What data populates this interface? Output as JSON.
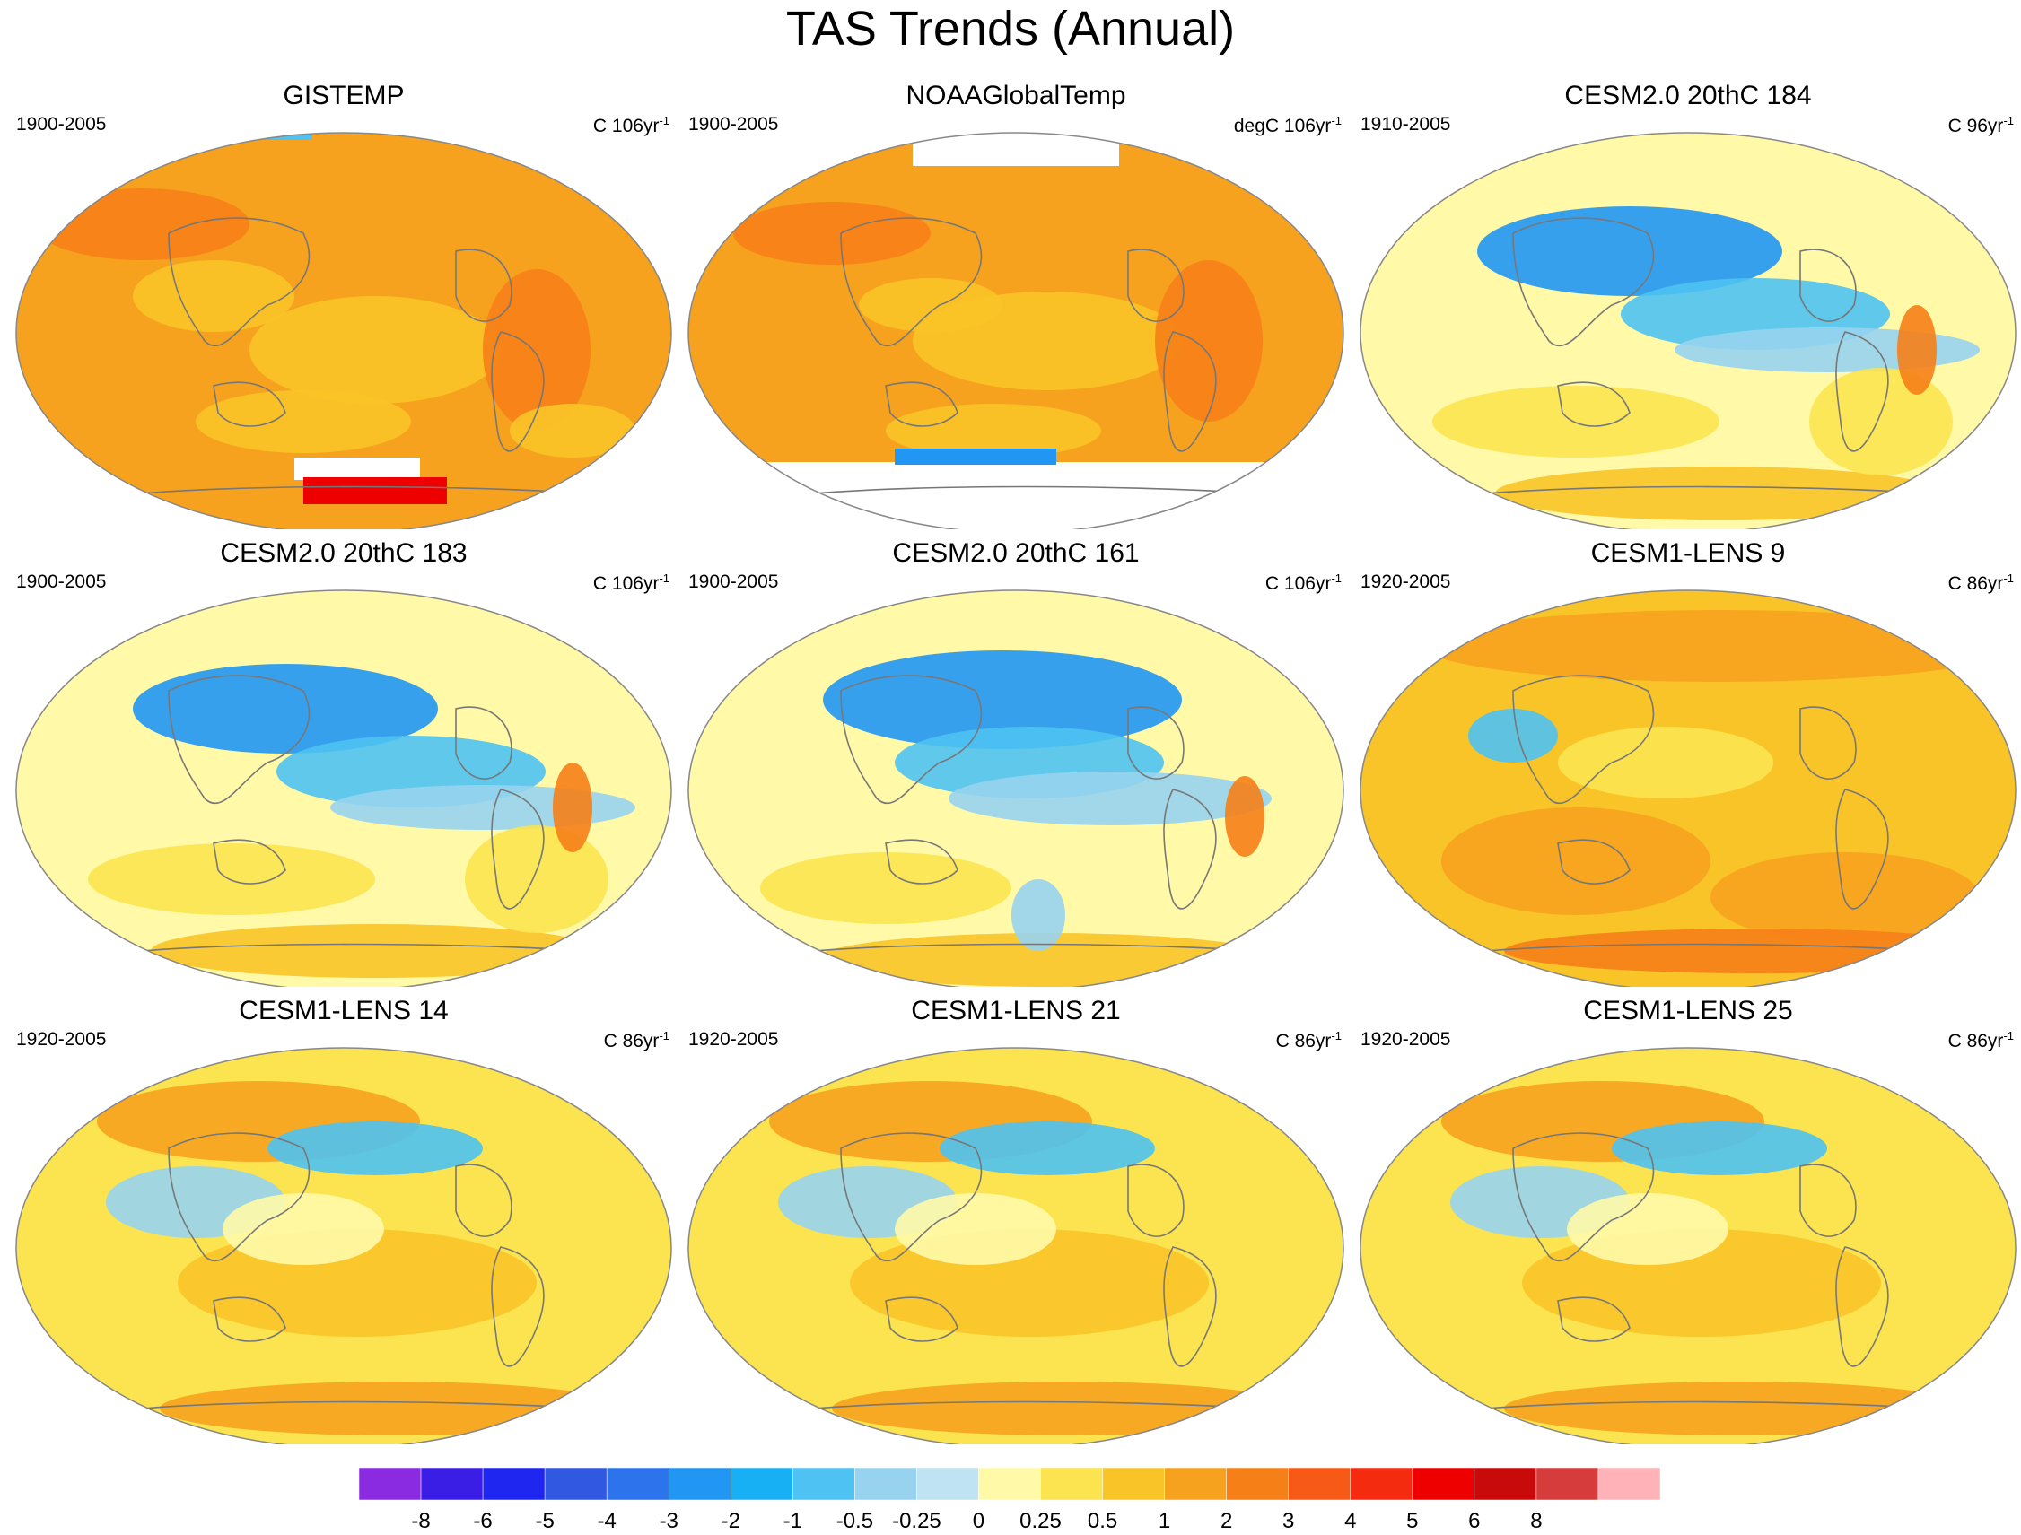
{
  "title": "TAS Trends (Annual)",
  "panels": [
    {
      "title": "GISTEMP",
      "period": "1900-2005",
      "units_prefix": "C 106yr",
      "units_sup": "-1",
      "style": "obs1"
    },
    {
      "title": "NOAAGlobalTemp",
      "period": "1900-2005",
      "units_prefix": "degC 106yr",
      "units_sup": "-1",
      "style": "obs2"
    },
    {
      "title": "CESM2.0 20thC 184",
      "period": "1910-2005",
      "units_prefix": "C 96yr",
      "units_sup": "-1",
      "style": "cool"
    },
    {
      "title": "CESM2.0 20thC 183",
      "period": "1900-2005",
      "units_prefix": "C 106yr",
      "units_sup": "-1",
      "style": "cool"
    },
    {
      "title": "CESM2.0 20thC 161",
      "period": "1900-2005",
      "units_prefix": "C 106yr",
      "units_sup": "-1",
      "style": "cool2"
    },
    {
      "title": "CESM1-LENS 9",
      "period": "1920-2005",
      "units_prefix": "C 86yr",
      "units_sup": "-1",
      "style": "warm"
    },
    {
      "title": "CESM1-LENS 14",
      "period": "1920-2005",
      "units_prefix": "C 86yr",
      "units_sup": "-1",
      "style": "mix"
    },
    {
      "title": "CESM1-LENS 21",
      "period": "1920-2005",
      "units_prefix": "C 86yr",
      "units_sup": "-1",
      "style": "mix"
    },
    {
      "title": "CESM1-LENS 25",
      "period": "1920-2005",
      "units_prefix": "C 86yr",
      "units_sup": "-1",
      "style": "mix"
    }
  ],
  "colorbar": {
    "labels": [
      "-8",
      "-6",
      "-5",
      "-4",
      "-3",
      "-2",
      "-1",
      "-0.5",
      "-0.25",
      "0",
      "0.25",
      "0.5",
      "1",
      "2",
      "3",
      "4",
      "5",
      "6",
      "8"
    ],
    "colors": [
      "#8a2be2",
      "#3a1ee6",
      "#1f26f0",
      "#3158e0",
      "#2d74ec",
      "#2196f3",
      "#18b0f5",
      "#4ec2f2",
      "#97d3ef",
      "#bfe3f3",
      "#fff9a8",
      "#fbe44f",
      "#f9c428",
      "#f7a21e",
      "#f67f18",
      "#f75a16",
      "#f52b10",
      "#ee0000",
      "#c80a0a",
      "#d63c3c",
      "#ffb3b8"
    ]
  },
  "palette": {
    "land_outline": "#777777",
    "map_border": "#888888",
    "missing": "#ffffff"
  }
}
